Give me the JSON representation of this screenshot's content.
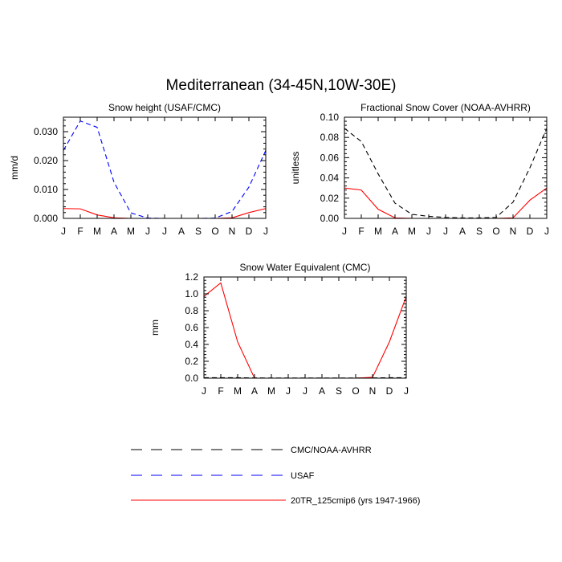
{
  "title": "Mediterranean (34-45N,10W-30E)",
  "months": [
    "J",
    "F",
    "M",
    "A",
    "M",
    "J",
    "J",
    "A",
    "S",
    "O",
    "N",
    "D",
    "J"
  ],
  "chart_data": [
    {
      "type": "line",
      "title": "Snow height (USAF/CMC)",
      "ylabel": "mm/d",
      "ylim": [
        0,
        0.035
      ],
      "yticks": [
        0,
        0.01,
        0.02,
        0.03
      ],
      "ytick_labels": [
        "0.000",
        "0.010",
        "0.020",
        "0.030"
      ],
      "categories": [
        "J",
        "F",
        "M",
        "A",
        "M",
        "J",
        "J",
        "A",
        "S",
        "O",
        "N",
        "D",
        "J"
      ],
      "series": [
        {
          "name": "USAF",
          "color": "#0000ff",
          "dash": true,
          "values": [
            0.0235,
            0.0337,
            0.0315,
            0.0125,
            0.0019,
            0.0001,
            0.0,
            0.0,
            0.0,
            0.0001,
            0.0024,
            0.0108,
            0.0235
          ]
        },
        {
          "name": "20TR_125cmip6 (yrs 1947-1966)",
          "color": "#ff0000",
          "dash": false,
          "values": [
            0.0034,
            0.0033,
            0.0012,
            0.0002,
            0.0,
            0.0,
            0.0,
            0.0,
            0.0,
            0.0,
            0.0002,
            0.002,
            0.0034
          ]
        }
      ]
    },
    {
      "type": "line",
      "title": "Fractional Snow Cover (NOAA-AVHRR)",
      "ylabel": "unitless",
      "ylim": [
        0,
        0.1
      ],
      "yticks": [
        0,
        0.02,
        0.04,
        0.06,
        0.08,
        0.1
      ],
      "ytick_labels": [
        "0.00",
        "0.02",
        "0.04",
        "0.06",
        "0.08",
        "0.10"
      ],
      "categories": [
        "J",
        "F",
        "M",
        "A",
        "M",
        "J",
        "J",
        "A",
        "S",
        "O",
        "N",
        "D",
        "J"
      ],
      "series": [
        {
          "name": "CMC/NOAA-AVHRR",
          "color": "#000000",
          "dash": true,
          "values": [
            0.089,
            0.076,
            0.044,
            0.015,
            0.004,
            0.002,
            0.001,
            0.0005,
            0.0005,
            0.001,
            0.016,
            0.05,
            0.089
          ]
        },
        {
          "name": "20TR_125cmip6 (yrs 1947-1966)",
          "color": "#ff0000",
          "dash": false,
          "values": [
            0.03,
            0.028,
            0.009,
            0.0005,
            0.0,
            0.0,
            0.0,
            0.0,
            0.0,
            0.0,
            0.0005,
            0.018,
            0.03
          ]
        }
      ]
    },
    {
      "type": "line",
      "title": "Snow Water Equivalent (CMC)",
      "ylabel": "mm",
      "ylim": [
        0,
        1.2
      ],
      "yticks": [
        0,
        0.2,
        0.4,
        0.6,
        0.8,
        1.0,
        1.2
      ],
      "ytick_labels": [
        "0.0",
        "0.2",
        "0.4",
        "0.6",
        "0.8",
        "1.0",
        "1.2"
      ],
      "categories": [
        "J",
        "F",
        "M",
        "A",
        "M",
        "J",
        "J",
        "A",
        "S",
        "O",
        "N",
        "D",
        "J"
      ],
      "series": [
        {
          "name": "CMC/NOAA-AVHRR",
          "color": "#000000",
          "dash": true,
          "values": [
            0.005,
            0.005,
            0.005,
            0.003,
            0.002,
            0.002,
            0.002,
            0.002,
            0.002,
            0.002,
            0.003,
            0.005,
            0.005
          ]
        },
        {
          "name": "20TR_125cmip6 (yrs 1947-1966)",
          "color": "#ff0000",
          "dash": false,
          "values": [
            0.97,
            1.13,
            0.43,
            0.0,
            0.0,
            0.0,
            0.0,
            0.0,
            0.0,
            0.0,
            0.01,
            0.43,
            0.97
          ]
        }
      ]
    }
  ],
  "legend": [
    {
      "label": "CMC/NOAA-AVHRR",
      "color": "#000000",
      "dash": true
    },
    {
      "label": "USAF",
      "color": "#0000ff",
      "dash": true
    },
    {
      "label": "20TR_125cmip6 (yrs 1947-1966)",
      "color": "#ff0000",
      "dash": false
    }
  ]
}
